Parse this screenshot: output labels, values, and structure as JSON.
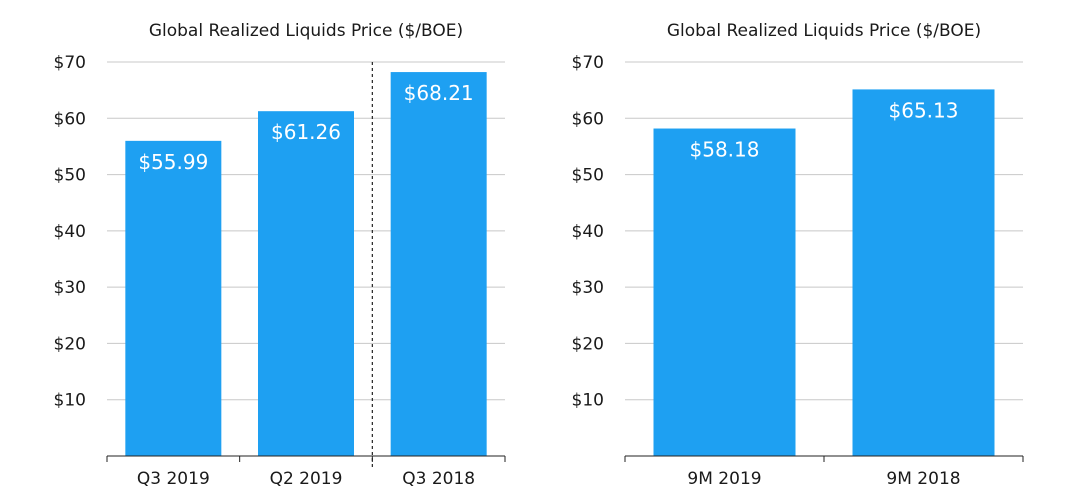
{
  "colors": {
    "bar": "#1ea0f2",
    "label": "#ffffff",
    "grid": "#c8c8c8"
  },
  "chart_data": [
    {
      "type": "bar",
      "title": "Global Realized Liquids Price ($/BOE)",
      "categories": [
        "Q3 2019",
        "Q2 2019",
        "Q3 2018"
      ],
      "values": [
        55.99,
        61.26,
        68.21
      ],
      "data_labels": [
        "$55.99",
        "$61.26",
        "$68.21"
      ],
      "yticks": [
        10,
        20,
        30,
        40,
        50,
        60,
        70
      ],
      "ytick_labels": [
        "$10",
        "$20",
        "$30",
        "$40",
        "$50",
        "$60",
        "$70"
      ],
      "ylim": [
        0,
        70
      ],
      "xlabel": "",
      "ylabel": "",
      "grid": true,
      "divider_before_category": "Q3 2018"
    },
    {
      "type": "bar",
      "title": "Global Realized Liquids Price ($/BOE)",
      "categories": [
        "9M 2019",
        "9M 2018"
      ],
      "values": [
        58.18,
        65.13
      ],
      "data_labels": [
        "$58.18",
        "$65.13"
      ],
      "yticks": [
        10,
        20,
        30,
        40,
        50,
        60,
        70
      ],
      "ytick_labels": [
        "$10",
        "$20",
        "$30",
        "$40",
        "$50",
        "$60",
        "$70"
      ],
      "ylim": [
        0,
        70
      ],
      "xlabel": "",
      "ylabel": "",
      "grid": true
    }
  ]
}
